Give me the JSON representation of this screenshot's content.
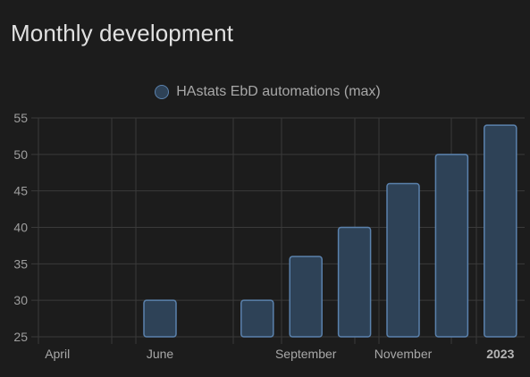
{
  "card": {
    "title": "Monthly development"
  },
  "colors": {
    "background": "#1c1c1c",
    "grid": "#3a3a3a",
    "bar_fill": "#2e4257",
    "bar_stroke": "#5b82ad"
  },
  "chart_data": {
    "type": "bar",
    "series": [
      {
        "name": "HAstats EbD automations (max)",
        "months": [
          "2022-04",
          "2022-05",
          "2022-06",
          "2022-07",
          "2022-08",
          "2022-09",
          "2022-10",
          "2022-11",
          "2022-12",
          "2023-01"
        ],
        "values": [
          null,
          null,
          30,
          null,
          30,
          36,
          40,
          46,
          50,
          54
        ]
      }
    ],
    "x_tick_labels": [
      {
        "month": "2022-04",
        "label": "April",
        "bold": false
      },
      {
        "month": "2022-06",
        "label": "June",
        "bold": false
      },
      {
        "month": "2022-09",
        "label": "September",
        "bold": false
      },
      {
        "month": "2022-11",
        "label": "November",
        "bold": false
      },
      {
        "month": "2023-01",
        "label": "2023",
        "bold": true
      }
    ],
    "y_ticks": [
      25,
      30,
      35,
      40,
      45,
      50,
      55
    ],
    "ylim": [
      25,
      55
    ],
    "xlabel": "",
    "ylabel": "",
    "grid": true,
    "legend_position": "top-center"
  }
}
